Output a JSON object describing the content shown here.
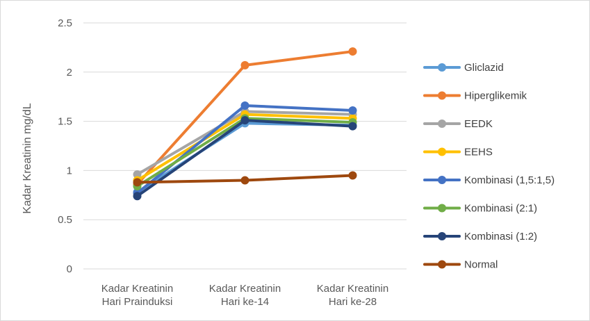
{
  "chart_data": {
    "type": "line",
    "title": "",
    "xlabel": "",
    "ylabel": "Kadar Kreatinin mg/dL",
    "ylim": [
      0,
      2.5
    ],
    "yticks": [
      "0",
      "0.5",
      "1",
      "1.5",
      "2",
      "2.5"
    ],
    "yticks_values": [
      0,
      0.5,
      1,
      1.5,
      2,
      2.5
    ],
    "grid": true,
    "legend_position": "right",
    "categories": [
      [
        "Kadar Kreatinin",
        "Hari Prainduksi"
      ],
      [
        "Kadar Kreatinin",
        "Hari ke-14"
      ],
      [
        "Kadar Kreatinin",
        "Hari ke-28"
      ]
    ],
    "series": [
      {
        "name": "Gliclazid",
        "color": "#5B9BD5",
        "values": [
          0.78,
          1.48,
          1.46
        ]
      },
      {
        "name": "Hiperglikemik",
        "color": "#ED7D31",
        "values": [
          0.86,
          2.07,
          2.21
        ]
      },
      {
        "name": "EEDK",
        "color": "#A5A5A5",
        "values": [
          0.96,
          1.6,
          1.57
        ]
      },
      {
        "name": "EEHS",
        "color": "#FFC000",
        "values": [
          0.9,
          1.57,
          1.53
        ]
      },
      {
        "name": "Kombinasi (1,5:1,5)",
        "color": "#4472C4",
        "values": [
          0.77,
          1.66,
          1.61
        ]
      },
      {
        "name": "Kombinasi (2:1)",
        "color": "#70AD47",
        "values": [
          0.84,
          1.53,
          1.49
        ]
      },
      {
        "name": "Kombinasi (1:2)",
        "color": "#264478",
        "values": [
          0.74,
          1.51,
          1.45
        ]
      },
      {
        "name": "Normal",
        "color": "#9E480E",
        "values": [
          0.88,
          0.9,
          0.95
        ]
      }
    ]
  }
}
